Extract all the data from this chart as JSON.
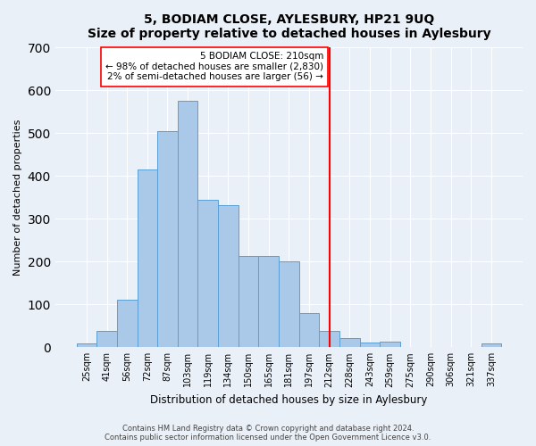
{
  "title": "5, BODIAM CLOSE, AYLESBURY, HP21 9UQ",
  "subtitle": "Size of property relative to detached houses in Aylesbury",
  "xlabel": "Distribution of detached houses by size in Aylesbury",
  "ylabel": "Number of detached properties",
  "bin_labels": [
    "25sqm",
    "41sqm",
    "56sqm",
    "72sqm",
    "87sqm",
    "103sqm",
    "119sqm",
    "134sqm",
    "150sqm",
    "165sqm",
    "181sqm",
    "197sqm",
    "212sqm",
    "228sqm",
    "243sqm",
    "259sqm",
    "275sqm",
    "290sqm",
    "306sqm",
    "321sqm",
    "337sqm"
  ],
  "bar_values": [
    8,
    38,
    112,
    415,
    505,
    575,
    345,
    332,
    213,
    213,
    200,
    80,
    38,
    22,
    12,
    13,
    0,
    0,
    0,
    0,
    10
  ],
  "bar_color": "#aac8e8",
  "bar_edge_color": "#5a9fd4",
  "vline_x": 12,
  "vline_color": "red",
  "ylim": [
    0,
    700
  ],
  "yticks": [
    0,
    100,
    200,
    300,
    400,
    500,
    600,
    700
  ],
  "annotation_title": "5 BODIAM CLOSE: 210sqm",
  "annotation_line1": "← 98% of detached houses are smaller (2,830)",
  "annotation_line2": "2% of semi-detached houses are larger (56) →",
  "footer1": "Contains HM Land Registry data © Crown copyright and database right 2024.",
  "footer2": "Contains public sector information licensed under the Open Government Licence v3.0.",
  "background_color": "#eaf0f8",
  "plot_bg_color": "#eaf0f8"
}
